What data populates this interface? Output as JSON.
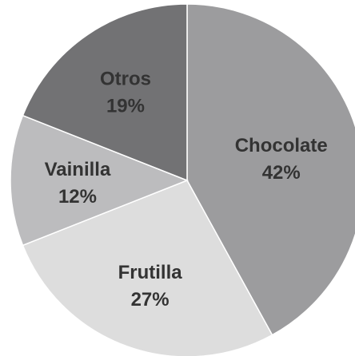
{
  "chart_data": {
    "type": "pie",
    "title": "",
    "slices": [
      {
        "label": "Chocolate",
        "value": 42,
        "value_label": "42%",
        "color": "#9c9c9e"
      },
      {
        "label": "Frutilla",
        "value": 27,
        "value_label": "27%",
        "color": "#dddddd"
      },
      {
        "label": "Vainilla",
        "value": 12,
        "value_label": "12%",
        "color": "#bcbcbe"
      },
      {
        "label": "Otros",
        "value": 19,
        "value_label": "19%",
        "color": "#727274"
      }
    ],
    "start_angle_deg": 0,
    "direction": "clockwise",
    "border_color": "#ffffff"
  }
}
